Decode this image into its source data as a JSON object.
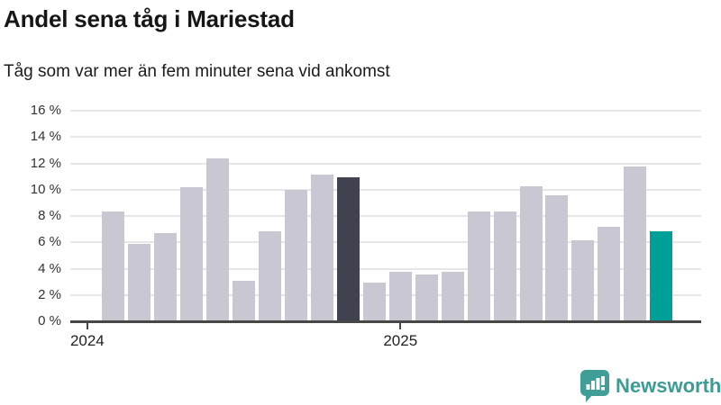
{
  "header": {
    "title": "Andel sena tåg i Mariestad",
    "subtitle": "Tåg som var mer än fem minuter sena vid ankomst"
  },
  "chart_data": {
    "type": "bar",
    "title": "Andel sena tåg i Mariestad",
    "subtitle": "Tåg som var mer än fem minuter sena vid ankomst",
    "unit": "%",
    "x_months": [
      "2024-02",
      "2024-03",
      "2024-04",
      "2024-05",
      "2024-06",
      "2024-07",
      "2024-08",
      "2024-09",
      "2024-10",
      "2024-11",
      "2024-12",
      "2025-01",
      "2025-02",
      "2025-03",
      "2025-04",
      "2025-05",
      "2025-06",
      "2025-07",
      "2025-08",
      "2025-09",
      "2025-10",
      "2025-11"
    ],
    "values": [
      8.3,
      5.8,
      6.6,
      10.1,
      12.3,
      3.0,
      6.8,
      9.9,
      11.1,
      10.9,
      2.9,
      3.7,
      3.5,
      3.7,
      8.3,
      8.3,
      10.2,
      9.5,
      6.1,
      7.1,
      11.7,
      6.8
    ],
    "ylim": [
      0,
      16
    ],
    "ytick_step": 2,
    "yticks": [
      {
        "value": 0,
        "label": "0 %"
      },
      {
        "value": 2,
        "label": "2 %"
      },
      {
        "value": 4,
        "label": "4 %"
      },
      {
        "value": 6,
        "label": "6 %"
      },
      {
        "value": 8,
        "label": "8 %"
      },
      {
        "value": 10,
        "label": "10 %"
      },
      {
        "value": 12,
        "label": "12 %"
      },
      {
        "value": 14,
        "label": "14 %"
      },
      {
        "value": 16,
        "label": "16 %"
      }
    ],
    "xticks": [
      {
        "label": "2024",
        "bar_index": -1
      },
      {
        "label": "2025",
        "bar_index": 11
      }
    ],
    "grid": true,
    "legend": "none",
    "colors": {
      "bar_default": "#c9c8d2",
      "bar_highlight_dark": "#414250",
      "bar_highlight_teal": "#00a099",
      "axis": "#474747",
      "gridline": "#e6e6e9"
    },
    "highlighted_bars": [
      {
        "index": 9,
        "color": "#414250"
      },
      {
        "index": 21,
        "color": "#00a099"
      }
    ]
  },
  "footer": {
    "brand": "Newsworthy",
    "brand_color": "#3d9b94"
  }
}
